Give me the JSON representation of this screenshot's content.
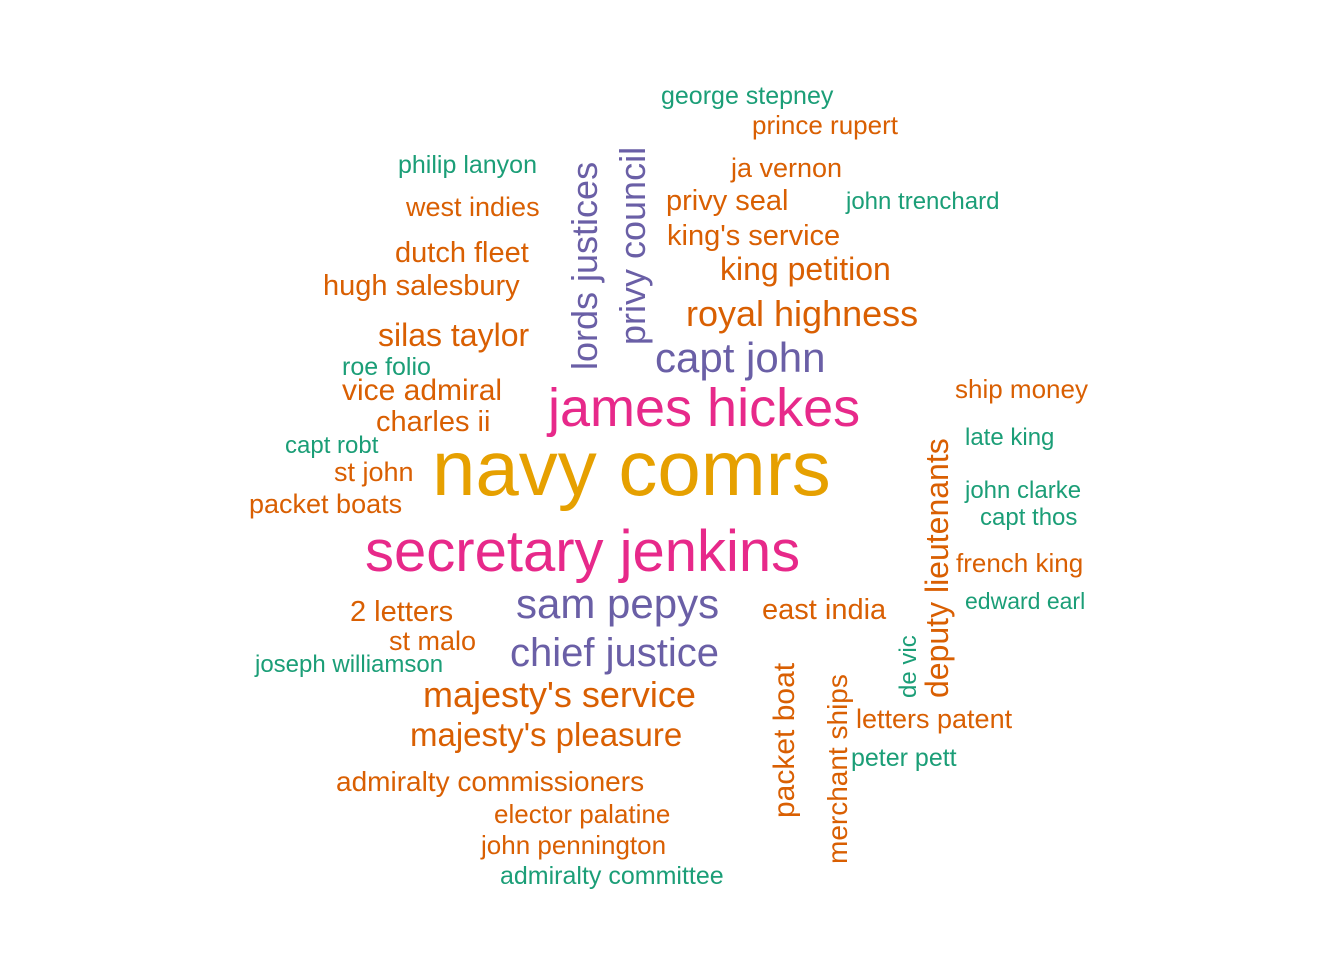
{
  "chart_data": {
    "type": "wordcloud",
    "colors": {
      "top": "#E6A000",
      "high": "#E7298A",
      "mid": "#6A5FA6",
      "low": "#D95F02",
      "min": "#1B9E77"
    },
    "words": [
      {
        "text": "navy comrs",
        "tier": "top"
      },
      {
        "text": "secretary jenkins",
        "tier": "high"
      },
      {
        "text": "james hickes",
        "tier": "high"
      },
      {
        "text": "sam pepys",
        "tier": "mid"
      },
      {
        "text": "capt john",
        "tier": "mid"
      },
      {
        "text": "chief justice",
        "tier": "mid"
      },
      {
        "text": "privy council",
        "tier": "mid"
      },
      {
        "text": "lords justices",
        "tier": "mid"
      },
      {
        "text": "royal highness",
        "tier": "low"
      },
      {
        "text": "majesty's service",
        "tier": "low"
      },
      {
        "text": "deputy lieutenants",
        "tier": "low"
      },
      {
        "text": "majesty's pleasure",
        "tier": "low"
      },
      {
        "text": "silas taylor",
        "tier": "low"
      },
      {
        "text": "king petition",
        "tier": "low"
      },
      {
        "text": "packet boat",
        "tier": "low"
      },
      {
        "text": "merchant ships",
        "tier": "low"
      },
      {
        "text": "vice admiral",
        "tier": "low"
      },
      {
        "text": "east india",
        "tier": "low"
      },
      {
        "text": "king's service",
        "tier": "low"
      },
      {
        "text": "privy seal",
        "tier": "low"
      },
      {
        "text": "dutch fleet",
        "tier": "low"
      },
      {
        "text": "hugh salesbury",
        "tier": "low"
      },
      {
        "text": "charles ii",
        "tier": "low"
      },
      {
        "text": "2 letters",
        "tier": "low"
      },
      {
        "text": "admiralty commissioners",
        "tier": "low"
      },
      {
        "text": "ja vernon",
        "tier": "low"
      },
      {
        "text": "packet boats",
        "tier": "low"
      },
      {
        "text": "st john",
        "tier": "low"
      },
      {
        "text": "west indies",
        "tier": "low"
      },
      {
        "text": "st malo",
        "tier": "low"
      },
      {
        "text": "letters patent",
        "tier": "low"
      },
      {
        "text": "french king",
        "tier": "low"
      },
      {
        "text": "ship money",
        "tier": "low"
      },
      {
        "text": "elector palatine",
        "tier": "low"
      },
      {
        "text": "john pennington",
        "tier": "low"
      },
      {
        "text": "prince rupert",
        "tier": "low"
      },
      {
        "text": "george stepney",
        "tier": "min"
      },
      {
        "text": "philip lanyon",
        "tier": "min"
      },
      {
        "text": "john trenchard",
        "tier": "min"
      },
      {
        "text": "roe folio",
        "tier": "min"
      },
      {
        "text": "capt robt",
        "tier": "min"
      },
      {
        "text": "late king",
        "tier": "min"
      },
      {
        "text": "john clarke",
        "tier": "min"
      },
      {
        "text": "capt thos",
        "tier": "min"
      },
      {
        "text": "edward earl",
        "tier": "min"
      },
      {
        "text": "joseph williamson",
        "tier": "min"
      },
      {
        "text": "de vic",
        "tier": "min"
      },
      {
        "text": "peter pett",
        "tier": "min"
      },
      {
        "text": "admiralty committee",
        "tier": "min"
      }
    ]
  }
}
